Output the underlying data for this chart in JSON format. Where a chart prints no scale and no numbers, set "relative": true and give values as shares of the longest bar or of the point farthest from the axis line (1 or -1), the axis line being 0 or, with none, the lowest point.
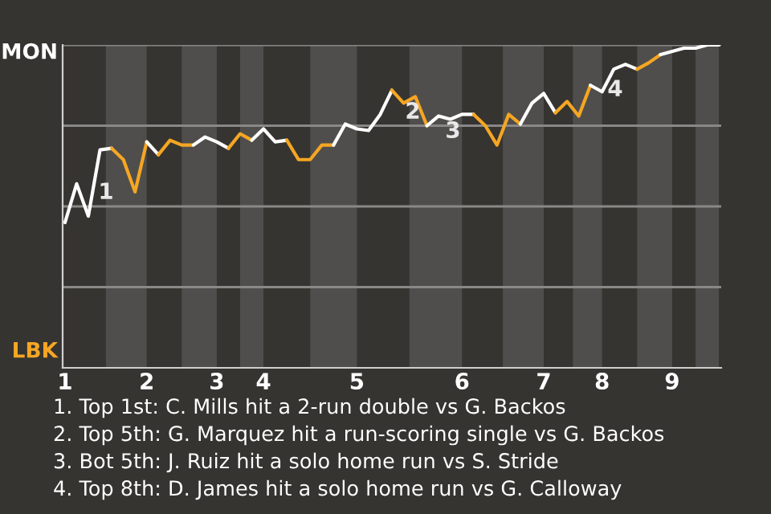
{
  "chart_data": {
    "type": "line",
    "relative": true,
    "categories": [
      "1",
      null,
      null,
      null,
      null,
      null,
      null,
      "2",
      null,
      null,
      null,
      null,
      null,
      "3",
      null,
      null,
      null,
      "4",
      null,
      null,
      null,
      null,
      null,
      null,
      null,
      "5",
      null,
      null,
      null,
      null,
      null,
      null,
      null,
      null,
      "6",
      null,
      null,
      null,
      null,
      null,
      null,
      "7",
      null,
      null,
      null,
      null,
      "8",
      null,
      null,
      null,
      null,
      null,
      "9",
      null,
      null,
      null,
      null
    ],
    "series": [
      {
        "color": "#ffffff",
        "values": [
          0.45,
          0.57,
          0.47,
          0.675,
          0.68,
          null,
          null,
          null,
          null,
          null,
          null,
          null,
          null,
          null,
          null,
          null,
          null,
          null,
          null,
          null,
          null,
          null,
          null,
          null,
          null,
          null,
          null,
          null,
          null,
          null,
          null,
          null,
          null,
          null,
          null,
          null,
          null,
          null,
          null,
          null,
          null,
          null,
          null,
          null,
          null,
          null,
          null,
          null,
          null,
          null,
          null,
          null,
          null,
          null,
          null,
          null,
          null
        ]
      },
      {
        "color": "#f5a623",
        "values": [
          null,
          null,
          null,
          null,
          0.68,
          0.645,
          0.545,
          0.7,
          null,
          null,
          null,
          null,
          null,
          null,
          null,
          null,
          null,
          null,
          null,
          null,
          null,
          null,
          null,
          null,
          null,
          null,
          null,
          null,
          null,
          null,
          null,
          null,
          null,
          null,
          null,
          null,
          null,
          null,
          null,
          null,
          null,
          null,
          null,
          null,
          null,
          null,
          null,
          null,
          null,
          null,
          null,
          null,
          null,
          null,
          null,
          null,
          null
        ]
      },
      {
        "color": "#ffffff",
        "values": [
          null,
          null,
          null,
          null,
          null,
          null,
          null,
          0.7,
          0.66,
          null,
          null,
          null,
          null,
          null,
          null,
          null,
          null,
          null,
          null,
          null,
          null,
          null,
          null,
          null,
          null,
          null,
          null,
          null,
          null,
          null,
          null,
          null,
          null,
          null,
          null,
          null,
          null,
          null,
          null,
          null,
          null,
          null,
          null,
          null,
          null,
          null,
          null,
          null,
          null,
          null,
          null,
          null,
          null,
          null,
          null,
          null,
          null
        ]
      },
      {
        "color": "#f5a623",
        "values": [
          null,
          null,
          null,
          null,
          null,
          null,
          null,
          null,
          0.66,
          0.705,
          0.69,
          0.69,
          null,
          null,
          null,
          null,
          null,
          null,
          null,
          null,
          null,
          null,
          null,
          null,
          null,
          null,
          null,
          null,
          null,
          null,
          null,
          null,
          null,
          null,
          null,
          null,
          null,
          null,
          null,
          null,
          null,
          null,
          null,
          null,
          null,
          null,
          null,
          null,
          null,
          null,
          null,
          null,
          null,
          null,
          null,
          null,
          null
        ]
      },
      {
        "color": "#ffffff",
        "values": [
          null,
          null,
          null,
          null,
          null,
          null,
          null,
          null,
          null,
          null,
          null,
          0.69,
          0.715,
          0.7,
          0.68,
          null,
          null,
          null,
          null,
          null,
          null,
          null,
          null,
          null,
          null,
          null,
          null,
          null,
          null,
          null,
          null,
          null,
          null,
          null,
          null,
          null,
          null,
          null,
          null,
          null,
          null,
          null,
          null,
          null,
          null,
          null,
          null,
          null,
          null,
          null,
          null,
          null,
          null,
          null,
          null,
          null,
          null
        ]
      },
      {
        "color": "#f5a623",
        "values": [
          null,
          null,
          null,
          null,
          null,
          null,
          null,
          null,
          null,
          null,
          null,
          null,
          null,
          null,
          0.68,
          0.725,
          0.705,
          null,
          null,
          null,
          null,
          null,
          null,
          null,
          null,
          null,
          null,
          null,
          null,
          null,
          null,
          null,
          null,
          null,
          null,
          null,
          null,
          null,
          null,
          null,
          null,
          null,
          null,
          null,
          null,
          null,
          null,
          null,
          null,
          null,
          null,
          null,
          null,
          null,
          null,
          null,
          null
        ]
      },
      {
        "color": "#ffffff",
        "values": [
          null,
          null,
          null,
          null,
          null,
          null,
          null,
          null,
          null,
          null,
          null,
          null,
          null,
          null,
          null,
          null,
          0.705,
          0.74,
          0.7,
          0.705,
          null,
          null,
          null,
          null,
          null,
          null,
          null,
          null,
          null,
          null,
          null,
          null,
          null,
          null,
          null,
          null,
          null,
          null,
          null,
          null,
          null,
          null,
          null,
          null,
          null,
          null,
          null,
          null,
          null,
          null,
          null,
          null,
          null,
          null,
          null,
          null,
          null
        ]
      },
      {
        "color": "#f5a623",
        "values": [
          null,
          null,
          null,
          null,
          null,
          null,
          null,
          null,
          null,
          null,
          null,
          null,
          null,
          null,
          null,
          null,
          null,
          null,
          null,
          0.705,
          0.645,
          0.645,
          0.69,
          0.69,
          null,
          null,
          null,
          null,
          null,
          null,
          null,
          null,
          null,
          null,
          null,
          null,
          null,
          null,
          null,
          null,
          null,
          null,
          null,
          null,
          null,
          null,
          null,
          null,
          null,
          null,
          null,
          null,
          null,
          null,
          null,
          null,
          null
        ]
      },
      {
        "color": "#ffffff",
        "values": [
          null,
          null,
          null,
          null,
          null,
          null,
          null,
          null,
          null,
          null,
          null,
          null,
          null,
          null,
          null,
          null,
          null,
          null,
          null,
          null,
          null,
          null,
          null,
          0.69,
          0.755,
          0.74,
          0.735,
          0.785,
          0.86,
          null,
          null,
          null,
          null,
          null,
          null,
          null,
          null,
          null,
          null,
          null,
          null,
          null,
          null,
          null,
          null,
          null,
          null,
          null,
          null,
          null,
          null,
          null,
          null,
          null,
          null,
          null,
          null
        ]
      },
      {
        "color": "#f5a623",
        "values": [
          null,
          null,
          null,
          null,
          null,
          null,
          null,
          null,
          null,
          null,
          null,
          null,
          null,
          null,
          null,
          null,
          null,
          null,
          null,
          null,
          null,
          null,
          null,
          null,
          null,
          null,
          null,
          null,
          0.86,
          0.82,
          0.84,
          0.75,
          null,
          null,
          null,
          null,
          null,
          null,
          null,
          null,
          null,
          null,
          null,
          null,
          null,
          null,
          null,
          null,
          null,
          null,
          null,
          null,
          null,
          null,
          null,
          null,
          null
        ]
      },
      {
        "color": "#ffffff",
        "values": [
          null,
          null,
          null,
          null,
          null,
          null,
          null,
          null,
          null,
          null,
          null,
          null,
          null,
          null,
          null,
          null,
          null,
          null,
          null,
          null,
          null,
          null,
          null,
          null,
          null,
          null,
          null,
          null,
          null,
          null,
          null,
          0.75,
          0.78,
          0.77,
          0.785,
          0.785,
          null,
          null,
          null,
          null,
          null,
          null,
          null,
          null,
          null,
          null,
          null,
          null,
          null,
          null,
          null,
          null,
          null,
          null,
          null,
          null,
          null
        ]
      },
      {
        "color": "#f5a623",
        "values": [
          null,
          null,
          null,
          null,
          null,
          null,
          null,
          null,
          null,
          null,
          null,
          null,
          null,
          null,
          null,
          null,
          null,
          null,
          null,
          null,
          null,
          null,
          null,
          null,
          null,
          null,
          null,
          null,
          null,
          null,
          null,
          null,
          null,
          null,
          null,
          0.785,
          0.75,
          0.69,
          0.785,
          0.755,
          null,
          null,
          null,
          null,
          null,
          null,
          null,
          null,
          null,
          null,
          null,
          null,
          null,
          null,
          null,
          null,
          null
        ]
      },
      {
        "color": "#ffffff",
        "values": [
          null,
          null,
          null,
          null,
          null,
          null,
          null,
          null,
          null,
          null,
          null,
          null,
          null,
          null,
          null,
          null,
          null,
          null,
          null,
          null,
          null,
          null,
          null,
          null,
          null,
          null,
          null,
          null,
          null,
          null,
          null,
          null,
          null,
          null,
          null,
          null,
          null,
          null,
          null,
          0.755,
          0.82,
          0.85,
          0.79,
          null,
          null,
          null,
          null,
          null,
          null,
          null,
          null,
          null,
          null,
          null,
          null,
          null,
          null
        ]
      },
      {
        "color": "#f5a623",
        "values": [
          null,
          null,
          null,
          null,
          null,
          null,
          null,
          null,
          null,
          null,
          null,
          null,
          null,
          null,
          null,
          null,
          null,
          null,
          null,
          null,
          null,
          null,
          null,
          null,
          null,
          null,
          null,
          null,
          null,
          null,
          null,
          null,
          null,
          null,
          null,
          null,
          null,
          null,
          null,
          null,
          null,
          null,
          0.79,
          0.825,
          0.78,
          0.875,
          null,
          null,
          null,
          null,
          null,
          null,
          null,
          null,
          null,
          null,
          null
        ]
      },
      {
        "color": "#ffffff",
        "values": [
          null,
          null,
          null,
          null,
          null,
          null,
          null,
          null,
          null,
          null,
          null,
          null,
          null,
          null,
          null,
          null,
          null,
          null,
          null,
          null,
          null,
          null,
          null,
          null,
          null,
          null,
          null,
          null,
          null,
          null,
          null,
          null,
          null,
          null,
          null,
          null,
          null,
          null,
          null,
          null,
          null,
          null,
          null,
          null,
          null,
          0.875,
          0.855,
          0.925,
          0.94,
          0.925,
          null,
          null,
          null,
          null,
          null,
          null,
          null
        ]
      },
      {
        "color": "#f5a623",
        "values": [
          null,
          null,
          null,
          null,
          null,
          null,
          null,
          null,
          null,
          null,
          null,
          null,
          null,
          null,
          null,
          null,
          null,
          null,
          null,
          null,
          null,
          null,
          null,
          null,
          null,
          null,
          null,
          null,
          null,
          null,
          null,
          null,
          null,
          null,
          null,
          null,
          null,
          null,
          null,
          null,
          null,
          null,
          null,
          null,
          null,
          null,
          null,
          null,
          null,
          0.925,
          0.945,
          0.97,
          null,
          null,
          null,
          null,
          null
        ]
      },
      {
        "color": "#ffffff",
        "values": [
          null,
          null,
          null,
          null,
          null,
          null,
          null,
          null,
          null,
          null,
          null,
          null,
          null,
          null,
          null,
          null,
          null,
          null,
          null,
          null,
          null,
          null,
          null,
          null,
          null,
          null,
          null,
          null,
          null,
          null,
          null,
          null,
          null,
          null,
          null,
          null,
          null,
          null,
          null,
          null,
          null,
          null,
          null,
          null,
          null,
          null,
          null,
          null,
          null,
          null,
          null,
          0.97,
          0.98,
          0.99,
          0.99,
          1.0,
          1.0
        ]
      }
    ],
    "marker": "none",
    "line_style": "solid",
    "ref_lines": [
      {
        "axis": "y",
        "value": 0.25,
        "color": "#8a8886"
      },
      {
        "axis": "y",
        "value": 0.5,
        "color": "#8a8886"
      },
      {
        "axis": "y",
        "value": 0.75,
        "color": "#8a8886"
      },
      {
        "axis": "y",
        "value": 1,
        "color": "#8a8886"
      }
    ],
    "annotations": [
      "MON",
      "LBK",
      "1",
      "2",
      "3",
      "4",
      "1. Top 1st: C. Mills hit a 2-run double vs G. Backos",
      "2. Top 5th: G. Marquez hit a run-scoring single vs G. Backos",
      "3. Bot 5th: J. Ruiz hit a solo home run vs S. Stride",
      "4. Top 8th: D. James hit a solo home run vs G. Calloway"
    ]
  }
}
